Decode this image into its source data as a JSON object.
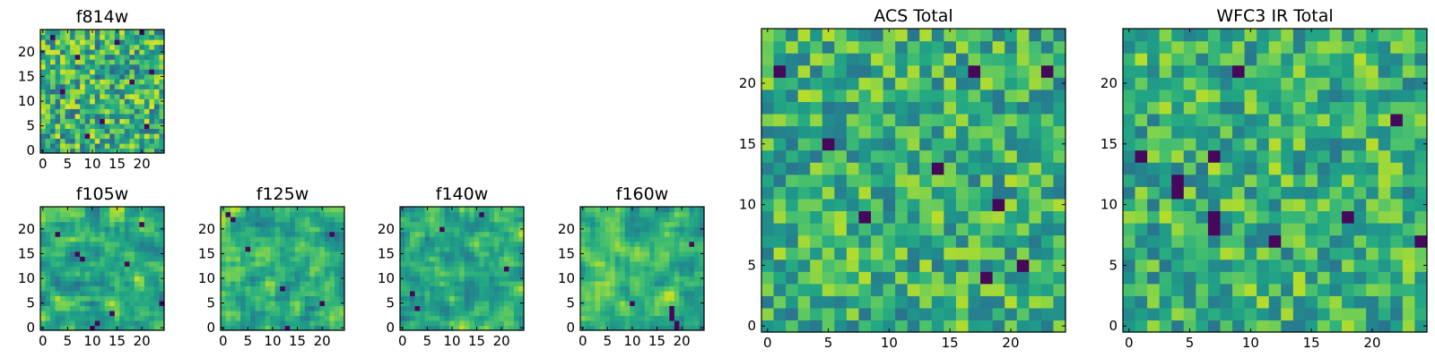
{
  "chart_data": [
    {
      "type": "heatmap",
      "title": "f814w",
      "grid_size": 25,
      "xlim": [
        -0.5,
        24.5
      ],
      "ylim": [
        -0.5,
        24.5
      ],
      "xticks": [
        0,
        5,
        10,
        15,
        20
      ],
      "yticks": [
        0,
        5,
        10,
        15,
        20
      ],
      "xticklabels": [
        "0",
        "5",
        "10",
        "15",
        "20"
      ],
      "yticklabels": [
        "0",
        "5",
        "10",
        "15",
        "20"
      ],
      "colormap": "viridis",
      "seed": 11,
      "contrast": 0.85,
      "smooth": 0,
      "dark_cells": [
        [
          2,
          23
        ],
        [
          7,
          19
        ],
        [
          15,
          22
        ],
        [
          21,
          5
        ],
        [
          9,
          3
        ],
        [
          4,
          12
        ],
        [
          18,
          14
        ],
        [
          12,
          6
        ],
        [
          22,
          16
        ],
        [
          20,
          24
        ]
      ]
    },
    {
      "type": "heatmap",
      "title": "f105w",
      "grid_size": 25,
      "xlim": [
        -0.5,
        24.5
      ],
      "ylim": [
        -0.5,
        24.5
      ],
      "xticks": [
        0,
        5,
        10,
        15,
        20
      ],
      "yticks": [
        0,
        5,
        10,
        15,
        20
      ],
      "xticklabels": [
        "0",
        "5",
        "10",
        "15",
        "20"
      ],
      "yticklabels": [
        "0",
        "5",
        "10",
        "15",
        "20"
      ],
      "colormap": "viridis",
      "seed": 23,
      "contrast": 0.75,
      "smooth": 1,
      "dark_cells": [
        [
          7,
          15
        ],
        [
          8,
          14
        ],
        [
          17,
          13
        ],
        [
          10,
          0
        ],
        [
          11,
          1
        ],
        [
          24,
          5
        ],
        [
          3,
          19
        ],
        [
          20,
          21
        ],
        [
          14,
          3
        ]
      ]
    },
    {
      "type": "heatmap",
      "title": "f125w",
      "grid_size": 25,
      "xlim": [
        -0.5,
        24.5
      ],
      "ylim": [
        -0.5,
        24.5
      ],
      "xticks": [
        0,
        5,
        10,
        15,
        20
      ],
      "yticks": [
        0,
        5,
        10,
        15,
        20
      ],
      "xticklabels": [
        "0",
        "5",
        "10",
        "15",
        "20"
      ],
      "yticklabels": [
        "0",
        "5",
        "10",
        "15",
        "20"
      ],
      "colormap": "viridis",
      "seed": 37,
      "contrast": 0.75,
      "smooth": 1,
      "dark_cells": [
        [
          1,
          23
        ],
        [
          2,
          22
        ],
        [
          12,
          8
        ],
        [
          13,
          0
        ],
        [
          20,
          5
        ],
        [
          5,
          16
        ],
        [
          22,
          19
        ]
      ]
    },
    {
      "type": "heatmap",
      "title": "f140w",
      "grid_size": 25,
      "xlim": [
        -0.5,
        24.5
      ],
      "ylim": [
        -0.5,
        24.5
      ],
      "xticks": [
        0,
        5,
        10,
        15,
        20
      ],
      "yticks": [
        0,
        5,
        10,
        15,
        20
      ],
      "xticklabels": [
        "0",
        "5",
        "10",
        "15",
        "20"
      ],
      "yticklabels": [
        "0",
        "5",
        "10",
        "15",
        "20"
      ],
      "colormap": "viridis",
      "seed": 41,
      "contrast": 0.75,
      "smooth": 1,
      "dark_cells": [
        [
          2,
          7
        ],
        [
          3,
          4
        ],
        [
          16,
          23
        ],
        [
          21,
          12
        ],
        [
          8,
          20
        ]
      ]
    },
    {
      "type": "heatmap",
      "title": "f160w",
      "grid_size": 25,
      "xlim": [
        -0.5,
        24.5
      ],
      "ylim": [
        -0.5,
        24.5
      ],
      "xticks": [
        0,
        5,
        10,
        15,
        20
      ],
      "yticks": [
        0,
        5,
        10,
        15,
        20
      ],
      "xticklabels": [
        "0",
        "5",
        "10",
        "15",
        "20"
      ],
      "yticklabels": [
        "0",
        "5",
        "10",
        "15",
        "20"
      ],
      "colormap": "viridis",
      "seed": 53,
      "contrast": 0.75,
      "smooth": 1,
      "dark_cells": [
        [
          18,
          3
        ],
        [
          18,
          2
        ],
        [
          19,
          1
        ],
        [
          19,
          0
        ],
        [
          18,
          4
        ],
        [
          10,
          5
        ],
        [
          22,
          17
        ]
      ]
    },
    {
      "type": "heatmap",
      "title": "ACS Total",
      "grid_size": 25,
      "xlim": [
        -0.5,
        24.5
      ],
      "ylim": [
        -0.5,
        24.5
      ],
      "xticks": [
        0,
        5,
        10,
        15,
        20
      ],
      "yticks": [
        0,
        5,
        10,
        15,
        20
      ],
      "xticklabels": [
        "0",
        "5",
        "10",
        "15",
        "20"
      ],
      "yticklabels": [
        "0",
        "5",
        "10",
        "15",
        "20"
      ],
      "colormap": "viridis",
      "seed": 67,
      "contrast": 0.7,
      "smooth": 0,
      "dark_cells": [
        [
          1,
          21
        ],
        [
          17,
          21
        ],
        [
          23,
          21
        ],
        [
          5,
          15
        ],
        [
          14,
          13
        ],
        [
          8,
          9
        ],
        [
          19,
          10
        ],
        [
          21,
          5
        ],
        [
          18,
          4
        ]
      ]
    },
    {
      "type": "heatmap",
      "title": "WFC3 IR Total",
      "grid_size": 25,
      "xlim": [
        -0.5,
        24.5
      ],
      "ylim": [
        -0.5,
        24.5
      ],
      "xticks": [
        0,
        5,
        10,
        15,
        20
      ],
      "yticks": [
        0,
        5,
        10,
        15,
        20
      ],
      "xticklabels": [
        "0",
        "5",
        "10",
        "15",
        "20"
      ],
      "yticklabels": [
        "0",
        "5",
        "10",
        "15",
        "20"
      ],
      "colormap": "viridis",
      "seed": 79,
      "contrast": 0.7,
      "smooth": 0,
      "dark_cells": [
        [
          9,
          21
        ],
        [
          1,
          14
        ],
        [
          7,
          14
        ],
        [
          4,
          11
        ],
        [
          4,
          12
        ],
        [
          7,
          9
        ],
        [
          7,
          8
        ],
        [
          24,
          7
        ],
        [
          18,
          9
        ],
        [
          12,
          7
        ],
        [
          22,
          17
        ]
      ]
    }
  ]
}
